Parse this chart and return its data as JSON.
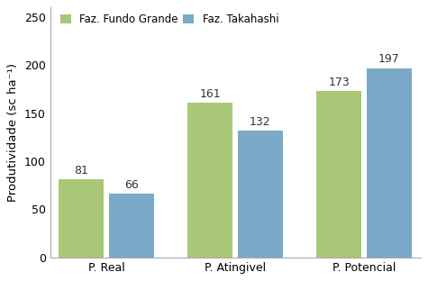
{
  "categories": [
    "P. Real",
    "P. Atingivel",
    "P. Potencial"
  ],
  "series": [
    {
      "label": "Faz. Fundo Grande",
      "values": [
        81,
        161,
        173
      ],
      "color": "#a8c878"
    },
    {
      "label": "Faz. Takahashi",
      "values": [
        66,
        132,
        197
      ],
      "color": "#7aaac8"
    }
  ],
  "ylabel": "Produtividade (sc ha⁻¹)",
  "ylim": [
    0,
    260
  ],
  "yticks": [
    0,
    50,
    100,
    150,
    200,
    250
  ],
  "bar_width": 0.28,
  "group_positions": [
    0.25,
    1.05,
    1.85
  ],
  "bar_gap": 0.03,
  "label_fontsize": 9,
  "axis_fontsize": 9.5,
  "legend_fontsize": 8.5,
  "tick_fontsize": 9,
  "background_color": "#ffffff"
}
